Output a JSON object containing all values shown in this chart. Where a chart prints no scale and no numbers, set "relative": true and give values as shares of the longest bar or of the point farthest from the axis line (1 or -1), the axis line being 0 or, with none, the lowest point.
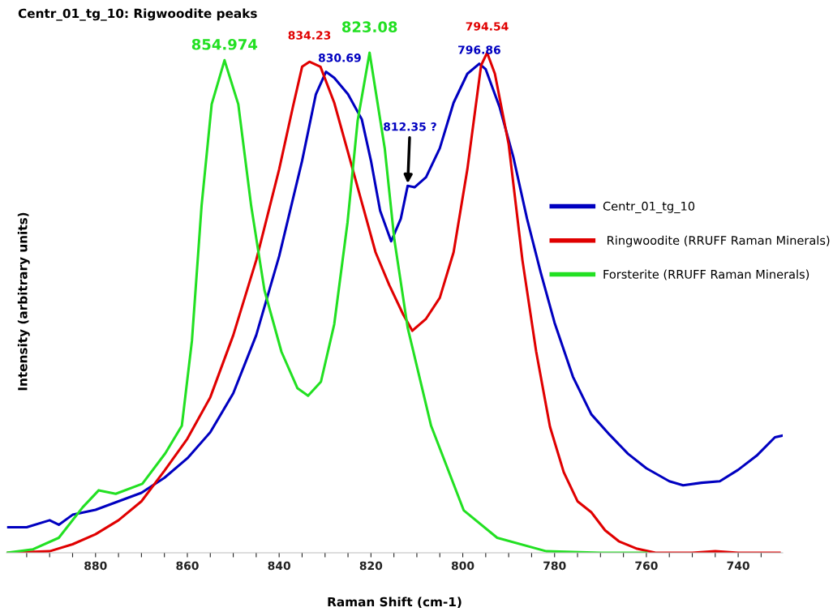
{
  "chart_data": {
    "type": "line",
    "title": "Centr_01_tg_10: Rigwoodite peaks",
    "xlabel": "Raman Shift (cm-1)",
    "ylabel": "Intensity (arbitrary units)",
    "relative": true,
    "xlim": [
      899.4,
      730.3
    ],
    "xticks": [
      {
        "value": 895,
        "label": null
      },
      {
        "value": 890,
        "label": null
      },
      {
        "value": 885,
        "label": null
      },
      880,
      {
        "value": 875,
        "label": null
      },
      {
        "value": 870,
        "label": null
      },
      {
        "value": 865,
        "label": null
      },
      860,
      {
        "value": 855,
        "label": null
      },
      {
        "value": 850,
        "label": null
      },
      {
        "value": 845,
        "label": null
      },
      840,
      {
        "value": 835,
        "label": null
      },
      {
        "value": 830,
        "label": null
      },
      {
        "value": 825,
        "label": null
      },
      820,
      {
        "value": 815,
        "label": null
      },
      {
        "value": 810,
        "label": null
      },
      {
        "value": 805,
        "label": null
      },
      800,
      {
        "value": 795,
        "label": null
      },
      {
        "value": 790,
        "label": null
      },
      {
        "value": 785,
        "label": null
      },
      780,
      {
        "value": 775,
        "label": null
      },
      {
        "value": 770,
        "label": null
      },
      {
        "value": 765,
        "label": null
      },
      760,
      {
        "value": 755,
        "label": null
      },
      {
        "value": 750,
        "label": null
      },
      {
        "value": 745,
        "label": null
      },
      740,
      {
        "value": 735,
        "label": null
      }
    ],
    "legend": "center right",
    "grid": false,
    "series": [
      {
        "name": "Centr_01_tg_10",
        "color": "#0000c0",
        "x": [
          899,
          895,
          890,
          888,
          885,
          880,
          875,
          870,
          865,
          860,
          855,
          850,
          845,
          840,
          835,
          832,
          829.8,
          828,
          825,
          822,
          820,
          818,
          815.6,
          813.5,
          812,
          810.5,
          808,
          805,
          802,
          799,
          796.4,
          795,
          792,
          789,
          786,
          783,
          780,
          776,
          772,
          768,
          764,
          760,
          755,
          752,
          748,
          744,
          740,
          736,
          732,
          730.5
        ],
        "values": [
          0.051,
          0.051,
          0.065,
          0.056,
          0.076,
          0.086,
          0.103,
          0.12,
          0.15,
          0.189,
          0.241,
          0.319,
          0.435,
          0.593,
          0.784,
          0.917,
          0.962,
          0.95,
          0.917,
          0.867,
          0.784,
          0.684,
          0.623,
          0.668,
          0.734,
          0.731,
          0.751,
          0.809,
          0.9,
          0.958,
          0.978,
          0.967,
          0.892,
          0.792,
          0.668,
          0.56,
          0.46,
          0.352,
          0.277,
          0.236,
          0.198,
          0.169,
          0.143,
          0.135,
          0.14,
          0.143,
          0.166,
          0.194,
          0.231,
          0.234
        ]
      },
      {
        "name": " Ringwoodite (RRUFF Raman Minerals)",
        "color": "#e00000",
        "x": [
          899,
          890,
          885,
          880,
          875,
          870,
          865,
          860,
          855,
          850,
          845,
          840,
          837,
          835,
          833.4,
          831,
          828,
          825,
          822,
          819,
          816,
          813,
          811,
          808,
          805,
          802,
          799,
          796,
          794.7,
          793,
          790,
          787,
          784,
          781,
          778,
          775,
          772,
          769,
          766,
          762,
          758,
          750,
          745,
          740,
          735,
          731
        ],
        "values": [
          0,
          0.003,
          0.017,
          0.037,
          0.065,
          0.103,
          0.164,
          0.228,
          0.311,
          0.435,
          0.585,
          0.767,
          0.892,
          0.972,
          0.982,
          0.972,
          0.9,
          0.801,
          0.701,
          0.601,
          0.535,
          0.477,
          0.444,
          0.468,
          0.51,
          0.601,
          0.767,
          0.975,
          1.0,
          0.958,
          0.817,
          0.585,
          0.402,
          0.252,
          0.161,
          0.103,
          0.081,
          0.045,
          0.023,
          0.008,
          0,
          0,
          0.003,
          0,
          0,
          0
        ]
      },
      {
        "name": "Forsterite (RRUFF Raman Minerals)",
        "color": "#22e022",
        "x": [
          899.4,
          893.6,
          888,
          882.8,
          879.3,
          875.6,
          869.8,
          864.8,
          861.2,
          859,
          856.9,
          854.7,
          851.9,
          848.9,
          846.1,
          843.2,
          839.5,
          836,
          833.7,
          830.9,
          828,
          825.1,
          822.9,
          820.3,
          817,
          814.9,
          812,
          806.9,
          799.8,
          792.5,
          781.8,
          770,
          760
        ],
        "values": [
          0,
          0.007,
          0.03,
          0.091,
          0.125,
          0.118,
          0.138,
          0.199,
          0.254,
          0.424,
          0.694,
          0.897,
          0.985,
          0.897,
          0.694,
          0.525,
          0.402,
          0.329,
          0.314,
          0.342,
          0.457,
          0.661,
          0.864,
          1.0,
          0.809,
          0.626,
          0.45,
          0.254,
          0.085,
          0.03,
          0.003,
          0,
          0
        ]
      }
    ],
    "annotations": [
      {
        "text": "854.974",
        "x": 851.9,
        "y": 0.985
      },
      {
        "text": "834.23",
        "x": 833.4,
        "y": 0.982
      },
      {
        "text": "830.69",
        "x": 829.8,
        "y": 0.962
      },
      {
        "text": "823.08",
        "x": 820.3,
        "y": 1.0
      },
      {
        "text": "812.35 ?",
        "x": 812,
        "y": 0.734
      },
      {
        "text": "796.86",
        "x": 796.4,
        "y": 0.978
      },
      {
        "text": "794.54",
        "x": 794.7,
        "y": 1.0
      }
    ]
  }
}
